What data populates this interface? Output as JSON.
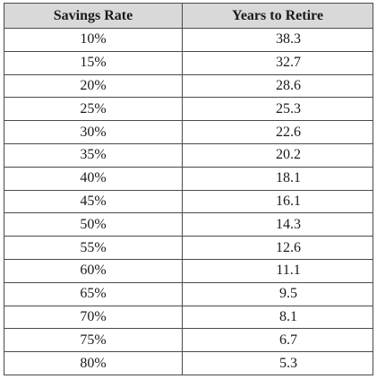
{
  "table": {
    "headers": [
      "Savings Rate",
      "Years to Retire"
    ],
    "rows": [
      [
        "10%",
        "38.3"
      ],
      [
        "15%",
        "32.7"
      ],
      [
        "20%",
        "28.6"
      ],
      [
        "25%",
        "25.3"
      ],
      [
        "30%",
        "22.6"
      ],
      [
        "35%",
        "20.2"
      ],
      [
        "40%",
        "18.1"
      ],
      [
        "45%",
        "16.1"
      ],
      [
        "50%",
        "14.3"
      ],
      [
        "55%",
        "12.6"
      ],
      [
        "60%",
        "11.1"
      ],
      [
        "65%",
        "9.5"
      ],
      [
        "70%",
        "8.1"
      ],
      [
        "75%",
        "6.7"
      ],
      [
        "80%",
        "5.3"
      ]
    ]
  },
  "colors": {
    "header_bg": "#d9d9d9",
    "border": "#4a4a4a",
    "text": "#1a1a1a"
  }
}
